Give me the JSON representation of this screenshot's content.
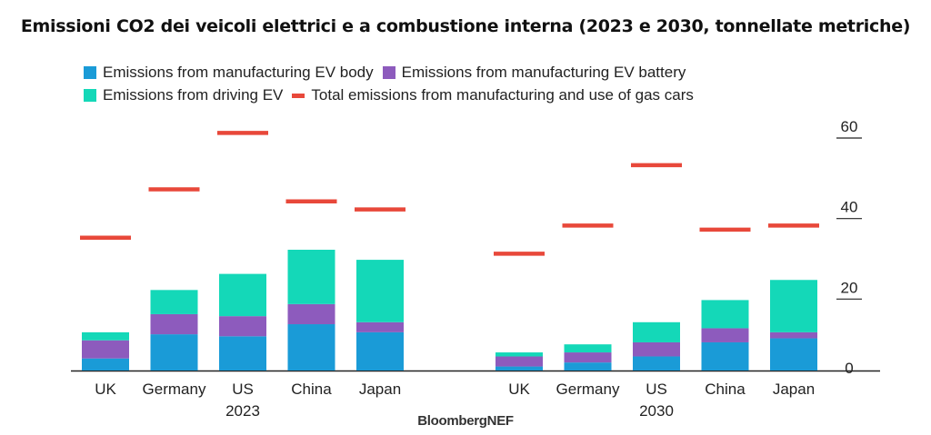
{
  "chart_data": {
    "type": "bar",
    "stacked": true,
    "title": "Emissioni CO2 dei veicoli elettrici e a combustione interna (2023 e 2030, tonnellate metriche)",
    "source": "BloombergNEF",
    "ylim": [
      0,
      60
    ],
    "yticks": [
      0,
      20,
      40,
      60
    ],
    "grid": false,
    "legend_position": "top-left",
    "groups": [
      {
        "label": "2023",
        "categories": [
          "UK",
          "Germany",
          "US",
          "China",
          "Japan"
        ],
        "series": [
          {
            "name": "Emissions from manufacturing EV body",
            "values": [
              3,
              9,
              8.5,
              11.5,
              9.5
            ]
          },
          {
            "name": "Emissions from manufacturing EV battery",
            "values": [
              4.5,
              5,
              5,
              5,
              2.5
            ]
          },
          {
            "name": "Emissions from driving EV",
            "values": [
              2,
              6,
              10.5,
              13.5,
              15.5
            ]
          }
        ],
        "gas_total": [
          33,
          45,
          59,
          42,
          40
        ]
      },
      {
        "label": "2030",
        "categories": [
          "UK",
          "Germany",
          "US",
          "China",
          "Japan"
        ],
        "series": [
          {
            "name": "Emissions from manufacturing EV body",
            "values": [
              1,
              2,
              3.5,
              7,
              8
            ]
          },
          {
            "name": "Emissions from manufacturing EV battery",
            "values": [
              2.5,
              2.5,
              3.5,
              3.5,
              1.5
            ]
          },
          {
            "name": "Emissions from driving EV",
            "values": [
              1,
              2,
              5,
              7,
              13
            ]
          }
        ],
        "gas_total": [
          29,
          36,
          51,
          35,
          36
        ]
      }
    ],
    "legend": [
      {
        "label": "Emissions from manufacturing EV body",
        "color": "#1a9bd7",
        "kind": "box"
      },
      {
        "label": "Emissions from manufacturing EV battery",
        "color": "#8d5bbd",
        "kind": "box"
      },
      {
        "label": "Emissions from driving EV",
        "color": "#14d8b8",
        "kind": "box"
      },
      {
        "label": "Total emissions from manufacturing and use of gas cars",
        "color": "#e8483a",
        "kind": "line"
      }
    ]
  }
}
